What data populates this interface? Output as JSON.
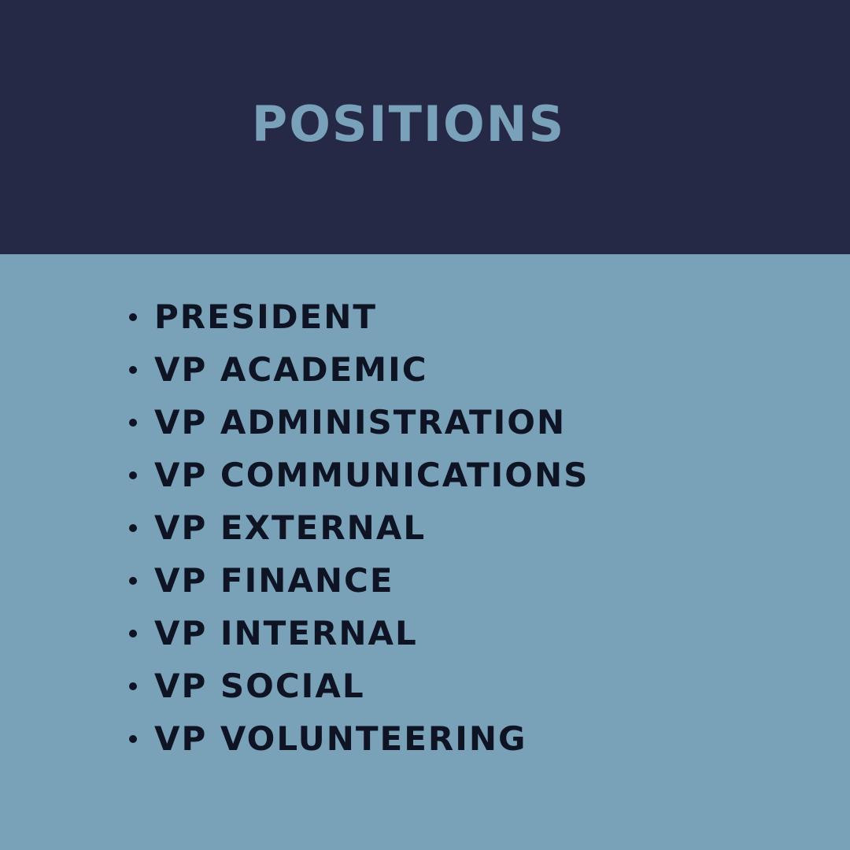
{
  "header": {
    "title": "POSITIONS"
  },
  "positions": [
    "PRESIDENT",
    "VP ACADEMIC",
    "VP ADMINISTRATION",
    "VP COMMUNICATIONS",
    "VP EXTERNAL",
    "VP FINANCE",
    "VP INTERNAL",
    "VP SOCIAL",
    "VP VOLUNTEERING"
  ],
  "colors": {
    "header_background": "#252945",
    "title_text": "#79a2ba",
    "content_background": "#79a2b9",
    "list_text": "#0e1424"
  }
}
